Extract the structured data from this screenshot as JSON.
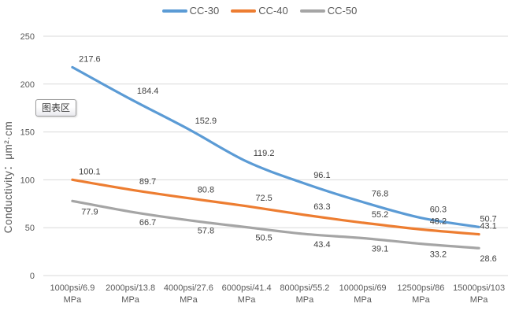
{
  "chart_data": {
    "type": "line",
    "title": "",
    "xlabel": "",
    "ylabel": "Conductivity：μm²·cm",
    "ylim": [
      0,
      250
    ],
    "yticks": [
      0,
      50,
      100,
      150,
      200,
      250
    ],
    "grid": "horizontal-only",
    "legend_position": "top-center",
    "line_style": "smooth",
    "categories": [
      "1000psi/6.9 MPa",
      "2000psi/13.8 MPa",
      "4000psi/27.6 MPa",
      "6000psi/41.4 MPa",
      "8000psi/55.2 MPa",
      "10000psi/69 MPa",
      "12500psi/86 MPa",
      "15000psi/103 MPa"
    ],
    "series": [
      {
        "name": "CC-30",
        "color": "#5B9BD5",
        "label_position": "above",
        "values": [
          217.6,
          184.4,
          152.9,
          119.2,
          96.1,
          76.8,
          60.3,
          50.7
        ]
      },
      {
        "name": "CC-40",
        "color": "#ED7D31",
        "label_position": "above",
        "values": [
          100.1,
          89.7,
          80.8,
          72.5,
          63.3,
          55.2,
          48.2,
          43.1
        ]
      },
      {
        "name": "CC-50",
        "color": "#A5A5A5",
        "label_position": "below",
        "values": [
          77.9,
          66.7,
          57.8,
          50.5,
          43.4,
          39.1,
          33.2,
          28.6
        ]
      }
    ]
  },
  "tooltip": {
    "text": "图表区"
  },
  "colors": {
    "background": "#FFFFFF",
    "gridline": "#D9D9D9",
    "axis_text": "#595959",
    "data_label": "#404040",
    "legend_text": "#595959"
  }
}
